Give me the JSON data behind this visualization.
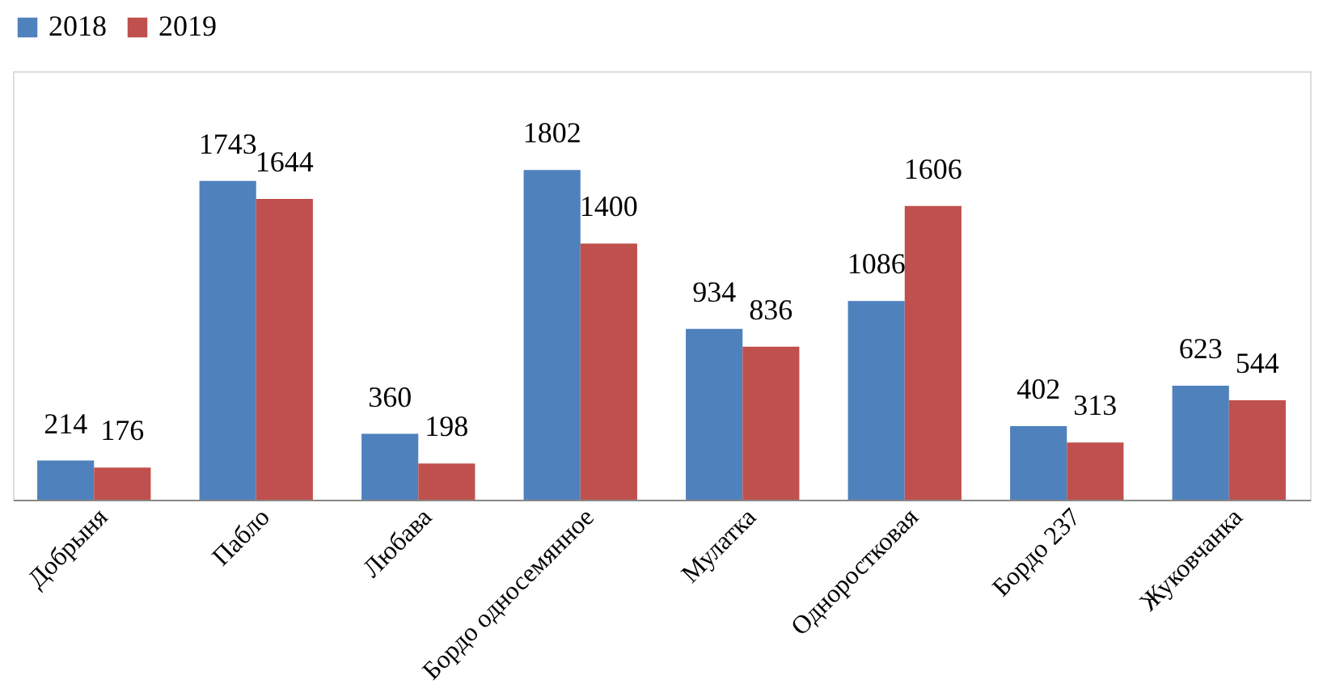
{
  "chart_data": {
    "type": "bar",
    "categories": [
      "Добрыня",
      "Пабло",
      "Любава",
      "Бордо односемянное",
      "Мулатка",
      "Одноростковая",
      "Бордо 237",
      "Жуковчанка"
    ],
    "series": [
      {
        "name": "2018",
        "color": "#4f81bd",
        "values": [
          214,
          1743,
          360,
          1802,
          934,
          1086,
          402,
          623
        ]
      },
      {
        "name": "2019",
        "color": "#c0504d",
        "values": [
          176,
          1644,
          198,
          1400,
          836,
          1606,
          313,
          544
        ]
      }
    ],
    "data_labels": true,
    "legend": "top",
    "grid": false
  }
}
